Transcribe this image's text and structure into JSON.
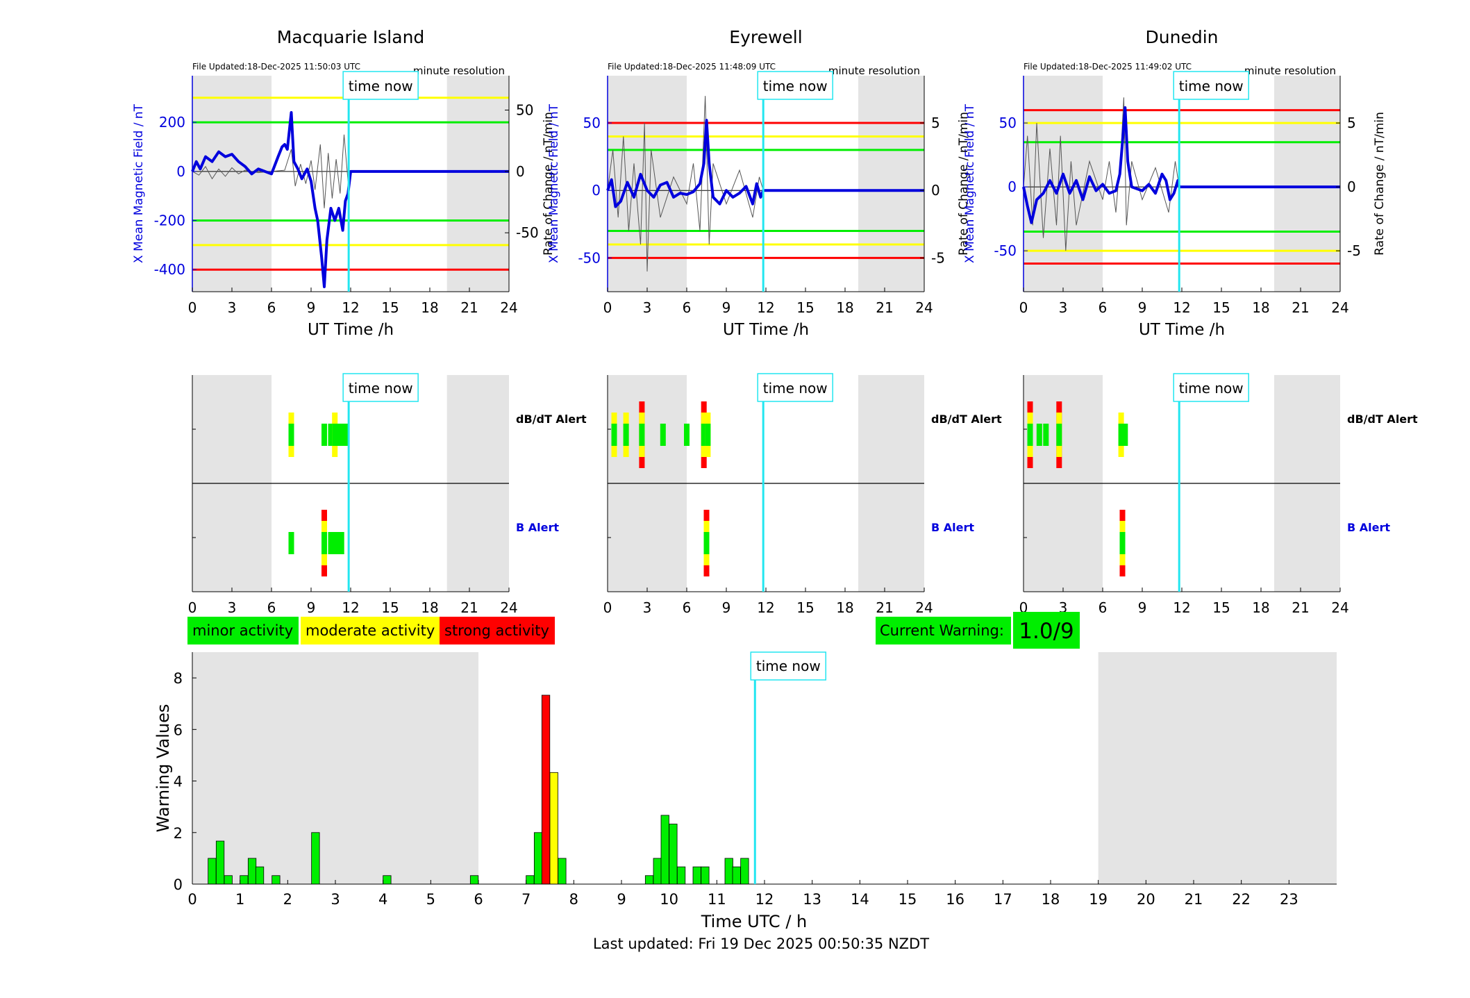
{
  "colors": {
    "minor": "#00ee00",
    "moderate": "#ffff00",
    "strong": "#ff0000",
    "field_line": "#0000dd",
    "rate_line": "#555555",
    "now_line": "#22e6f0",
    "night_shade": "#e4e4e4"
  },
  "stations": [
    {
      "name": "Macquarie Island",
      "file_updated": "File Updated:18-Dec-2025 11:50:03 UTC",
      "resolution": "minute resolution",
      "left_axis_label": "X Mean Magnetic Field / nT",
      "right_axis_label": "Rate of Change / nT/min",
      "x_label": "UT Time /h",
      "time_now_label": "time now",
      "now_hour": 11.85,
      "night_shade_hours": [
        [
          0,
          6
        ],
        [
          19.3,
          24
        ]
      ],
      "x_ticks": [
        0,
        3,
        6,
        9,
        12,
        15,
        18,
        21,
        24
      ],
      "left_ylim": [
        -490,
        390
      ],
      "left_ticks": [
        -400,
        -200,
        0,
        200
      ],
      "right_ylim": [
        -98,
        78
      ],
      "right_ticks": [
        -50,
        0,
        50
      ],
      "levels": [
        {
          "value": 300,
          "color": "yellow"
        },
        {
          "value": 200,
          "color": "green"
        },
        {
          "value": -200,
          "color": "green"
        },
        {
          "value": -300,
          "color": "yellow"
        },
        {
          "value": -400,
          "color": "red"
        }
      ],
      "field_series": [
        [
          0,
          0
        ],
        [
          0.3,
          40
        ],
        [
          0.6,
          10
        ],
        [
          1,
          60
        ],
        [
          1.5,
          40
        ],
        [
          2,
          80
        ],
        [
          2.5,
          60
        ],
        [
          3,
          70
        ],
        [
          3.5,
          40
        ],
        [
          4,
          20
        ],
        [
          4.5,
          -10
        ],
        [
          5,
          10
        ],
        [
          5.5,
          0
        ],
        [
          6,
          -10
        ],
        [
          6.5,
          60
        ],
        [
          6.8,
          100
        ],
        [
          7,
          110
        ],
        [
          7.2,
          90
        ],
        [
          7.5,
          240
        ],
        [
          7.7,
          40
        ],
        [
          8,
          10
        ],
        [
          8.3,
          -30
        ],
        [
          8.7,
          10
        ],
        [
          9,
          -40
        ],
        [
          9.3,
          -150
        ],
        [
          9.5,
          -200
        ],
        [
          9.8,
          -350
        ],
        [
          10,
          -470
        ],
        [
          10.2,
          -280
        ],
        [
          10.5,
          -150
        ],
        [
          10.8,
          -200
        ],
        [
          11.1,
          -150
        ],
        [
          11.4,
          -240
        ],
        [
          11.6,
          -120
        ],
        [
          11.8,
          -90
        ],
        [
          12,
          0
        ],
        [
          24,
          0
        ]
      ],
      "rate_series": [
        [
          0,
          0
        ],
        [
          0.5,
          -3
        ],
        [
          1,
          4
        ],
        [
          1.5,
          -6
        ],
        [
          2,
          2
        ],
        [
          2.5,
          -4
        ],
        [
          3,
          3
        ],
        [
          3.5,
          -2
        ],
        [
          4,
          1
        ],
        [
          4.5,
          0
        ],
        [
          5,
          -1
        ],
        [
          6,
          0
        ],
        [
          7,
          1
        ],
        [
          7.5,
          18
        ],
        [
          7.8,
          -12
        ],
        [
          8.2,
          6
        ],
        [
          8.6,
          -10
        ],
        [
          9,
          9
        ],
        [
          9.3,
          -15
        ],
        [
          9.7,
          22
        ],
        [
          10,
          -30
        ],
        [
          10.3,
          15
        ],
        [
          10.6,
          -22
        ],
        [
          10.9,
          10
        ],
        [
          11.2,
          -18
        ],
        [
          11.5,
          30
        ],
        [
          11.8,
          -8
        ],
        [
          12,
          0
        ]
      ],
      "dbdt_alert_label": "dB/dT Alert",
      "b_alert_label": "B Alert",
      "dbdt_alerts": [
        [
          7.5,
          2
        ],
        [
          10,
          1
        ],
        [
          10.5,
          1
        ],
        [
          10.8,
          2
        ],
        [
          11.2,
          1
        ],
        [
          11.6,
          1
        ]
      ],
      "b_alerts": [
        [
          7.5,
          1
        ],
        [
          10,
          3
        ],
        [
          10.5,
          1
        ],
        [
          10.9,
          1
        ],
        [
          11.3,
          1
        ]
      ]
    },
    {
      "name": "Eyrewell",
      "file_updated": "File Updated:18-Dec-2025 11:48:09 UTC",
      "resolution": "minute resolution",
      "left_axis_label": "X Mean Magnetic Field / nT",
      "right_axis_label": "Rate of Change / nT/min",
      "x_label": "UT Time /h",
      "time_now_label": "time now",
      "now_hour": 11.8,
      "night_shade_hours": [
        [
          0,
          6
        ],
        [
          19,
          24
        ]
      ],
      "x_ticks": [
        0,
        3,
        6,
        9,
        12,
        15,
        18,
        21,
        24
      ],
      "left_ylim": [
        -75,
        85
      ],
      "left_ticks": [
        -50,
        0,
        50
      ],
      "right_ylim": [
        -7.5,
        8.5
      ],
      "right_ticks": [
        -5,
        0,
        5
      ],
      "levels": [
        {
          "value": 50,
          "color": "red"
        },
        {
          "value": 40,
          "color": "yellow"
        },
        {
          "value": 30,
          "color": "green"
        },
        {
          "value": -30,
          "color": "green"
        },
        {
          "value": -40,
          "color": "yellow"
        },
        {
          "value": -50,
          "color": "red"
        }
      ],
      "field_series": [
        [
          0,
          0
        ],
        [
          0.3,
          8
        ],
        [
          0.6,
          -12
        ],
        [
          1,
          -8
        ],
        [
          1.5,
          6
        ],
        [
          2,
          -5
        ],
        [
          2.5,
          12
        ],
        [
          3,
          0
        ],
        [
          3.5,
          -5
        ],
        [
          4,
          4
        ],
        [
          4.5,
          6
        ],
        [
          5,
          -5
        ],
        [
          5.5,
          -2
        ],
        [
          6,
          -3
        ],
        [
          6.5,
          -1
        ],
        [
          7,
          5
        ],
        [
          7.3,
          20
        ],
        [
          7.5,
          52
        ],
        [
          7.7,
          20
        ],
        [
          8,
          -5
        ],
        [
          8.5,
          -10
        ],
        [
          9,
          0
        ],
        [
          9.5,
          -5
        ],
        [
          10,
          -2
        ],
        [
          10.5,
          3
        ],
        [
          11,
          -10
        ],
        [
          11.3,
          5
        ],
        [
          11.6,
          -5
        ],
        [
          11.8,
          0
        ],
        [
          24,
          0
        ]
      ],
      "rate_series": [
        [
          0,
          0
        ],
        [
          0.4,
          3
        ],
        [
          0.8,
          -2
        ],
        [
          1.2,
          4
        ],
        [
          1.6,
          -3
        ],
        [
          2,
          2
        ],
        [
          2.5,
          -4
        ],
        [
          2.8,
          5
        ],
        [
          3,
          -6
        ],
        [
          3.3,
          3
        ],
        [
          4,
          -2
        ],
        [
          5,
          1
        ],
        [
          6,
          -1
        ],
        [
          6.5,
          2
        ],
        [
          7,
          -3
        ],
        [
          7.4,
          7
        ],
        [
          7.7,
          -4
        ],
        [
          8,
          2
        ],
        [
          9,
          -1
        ],
        [
          10,
          1.5
        ],
        [
          11,
          -2
        ],
        [
          11.5,
          1
        ],
        [
          11.8,
          0
        ]
      ],
      "dbdt_alert_label": "dB/dT Alert",
      "b_alert_label": "B Alert",
      "dbdt_alerts": [
        [
          0.5,
          2
        ],
        [
          1.4,
          2
        ],
        [
          2.6,
          3
        ],
        [
          4.2,
          1
        ],
        [
          6,
          1
        ],
        [
          7.3,
          3
        ],
        [
          7.6,
          2
        ]
      ],
      "b_alerts": [
        [
          7.5,
          3
        ]
      ]
    },
    {
      "name": "Dunedin",
      "file_updated": "File Updated:18-Dec-2025 11:49:02 UTC",
      "resolution": "minute resolution",
      "left_axis_label": "X Mean Magnetic Field / nT",
      "right_axis_label": "Rate of Change / nT/min",
      "x_label": "UT Time /h",
      "time_now_label": "time now",
      "now_hour": 11.8,
      "night_shade_hours": [
        [
          0,
          6
        ],
        [
          19,
          24
        ]
      ],
      "x_ticks": [
        0,
        3,
        6,
        9,
        12,
        15,
        18,
        21,
        24
      ],
      "left_ylim": [
        -82,
        87
      ],
      "left_ticks": [
        -50,
        0,
        50
      ],
      "right_ylim": [
        -8.2,
        8.7
      ],
      "right_ticks": [
        -5,
        0,
        5
      ],
      "levels": [
        {
          "value": 60,
          "color": "red"
        },
        {
          "value": 50,
          "color": "yellow"
        },
        {
          "value": 35,
          "color": "green"
        },
        {
          "value": -35,
          "color": "green"
        },
        {
          "value": -50,
          "color": "yellow"
        },
        {
          "value": -60,
          "color": "red"
        }
      ],
      "field_series": [
        [
          0,
          0
        ],
        [
          0.3,
          -15
        ],
        [
          0.6,
          -28
        ],
        [
          1,
          -10
        ],
        [
          1.5,
          -5
        ],
        [
          2,
          5
        ],
        [
          2.5,
          -5
        ],
        [
          3,
          10
        ],
        [
          3.5,
          -5
        ],
        [
          4,
          5
        ],
        [
          4.5,
          -10
        ],
        [
          5,
          8
        ],
        [
          5.5,
          -3
        ],
        [
          6,
          2
        ],
        [
          6.5,
          -5
        ],
        [
          7,
          -3
        ],
        [
          7.3,
          10
        ],
        [
          7.5,
          35
        ],
        [
          7.7,
          62
        ],
        [
          7.9,
          20
        ],
        [
          8.2,
          0
        ],
        [
          9,
          -3
        ],
        [
          9.5,
          2
        ],
        [
          10,
          -5
        ],
        [
          10.5,
          10
        ],
        [
          10.8,
          5
        ],
        [
          11.1,
          -10
        ],
        [
          11.4,
          -5
        ],
        [
          11.7,
          5
        ],
        [
          11.8,
          0
        ],
        [
          24,
          0
        ]
      ],
      "rate_series": [
        [
          0,
          0
        ],
        [
          0.3,
          4
        ],
        [
          0.7,
          -3
        ],
        [
          1,
          5
        ],
        [
          1.5,
          -4
        ],
        [
          2,
          3
        ],
        [
          2.5,
          -3
        ],
        [
          2.8,
          4
        ],
        [
          3.2,
          -5
        ],
        [
          3.6,
          2
        ],
        [
          4,
          -3
        ],
        [
          5,
          2
        ],
        [
          6,
          -1
        ],
        [
          6.5,
          2
        ],
        [
          7,
          -2
        ],
        [
          7.4,
          3
        ],
        [
          7.6,
          7
        ],
        [
          7.8,
          -3
        ],
        [
          8.2,
          2
        ],
        [
          9,
          -1
        ],
        [
          10,
          1.5
        ],
        [
          11,
          -2
        ],
        [
          11.5,
          2
        ],
        [
          11.8,
          0
        ]
      ],
      "dbdt_alert_label": "dB/dT Alert",
      "b_alert_label": "B Alert",
      "dbdt_alerts": [
        [
          0.5,
          3
        ],
        [
          1.2,
          1
        ],
        [
          1.7,
          1
        ],
        [
          2.7,
          3
        ],
        [
          7.4,
          2
        ],
        [
          7.7,
          1
        ]
      ],
      "b_alerts": [
        [
          7.5,
          3
        ]
      ]
    }
  ],
  "legend": {
    "minor": "minor activity",
    "moderate": "moderate activity",
    "strong": "strong activity"
  },
  "current_warning": {
    "label": "Current Warning:",
    "value": "1.0/9"
  },
  "chart_data": {
    "type": "bar",
    "title": "",
    "xlabel": "Time UTC / h",
    "ylabel": "Warning Values",
    "xlim": [
      0,
      24
    ],
    "ylim": [
      0,
      9
    ],
    "x_ticks": [
      0,
      1,
      2,
      3,
      4,
      5,
      6,
      7,
      8,
      9,
      10,
      11,
      12,
      13,
      14,
      15,
      16,
      17,
      18,
      19,
      20,
      21,
      22,
      23
    ],
    "y_ticks": [
      0,
      2,
      4,
      6,
      8
    ],
    "night_shade_hours": [
      [
        0,
        6
      ],
      [
        19,
        24
      ]
    ],
    "now_hour": 11.8,
    "time_now_label": "time now",
    "bin_width_h": 0.1667,
    "bars": [
      {
        "x": 0.33,
        "value": 1.0,
        "level": "minor"
      },
      {
        "x": 0.5,
        "value": 1.67,
        "level": "minor"
      },
      {
        "x": 0.67,
        "value": 0.33,
        "level": "minor"
      },
      {
        "x": 1.0,
        "value": 0.33,
        "level": "minor"
      },
      {
        "x": 1.17,
        "value": 1.0,
        "level": "minor"
      },
      {
        "x": 1.33,
        "value": 0.67,
        "level": "minor"
      },
      {
        "x": 1.67,
        "value": 0.33,
        "level": "minor"
      },
      {
        "x": 2.5,
        "value": 2.0,
        "level": "minor"
      },
      {
        "x": 4.0,
        "value": 0.33,
        "level": "minor"
      },
      {
        "x": 5.83,
        "value": 0.33,
        "level": "minor"
      },
      {
        "x": 7.0,
        "value": 0.33,
        "level": "minor"
      },
      {
        "x": 7.17,
        "value": 2.0,
        "level": "minor"
      },
      {
        "x": 7.33,
        "value": 7.33,
        "level": "strong"
      },
      {
        "x": 7.5,
        "value": 4.33,
        "level": "moderate"
      },
      {
        "x": 7.67,
        "value": 1.0,
        "level": "minor"
      },
      {
        "x": 9.5,
        "value": 0.33,
        "level": "minor"
      },
      {
        "x": 9.67,
        "value": 1.0,
        "level": "minor"
      },
      {
        "x": 9.83,
        "value": 2.67,
        "level": "minor"
      },
      {
        "x": 10.0,
        "value": 2.33,
        "level": "minor"
      },
      {
        "x": 10.17,
        "value": 0.67,
        "level": "minor"
      },
      {
        "x": 10.5,
        "value": 0.67,
        "level": "minor"
      },
      {
        "x": 10.67,
        "value": 0.67,
        "level": "minor"
      },
      {
        "x": 11.17,
        "value": 1.0,
        "level": "minor"
      },
      {
        "x": 11.33,
        "value": 0.67,
        "level": "minor"
      },
      {
        "x": 11.5,
        "value": 1.0,
        "level": "minor"
      }
    ]
  },
  "footer": {
    "last_updated": "Last updated: Fri 19 Dec 2025 00:50:35 NZDT"
  }
}
